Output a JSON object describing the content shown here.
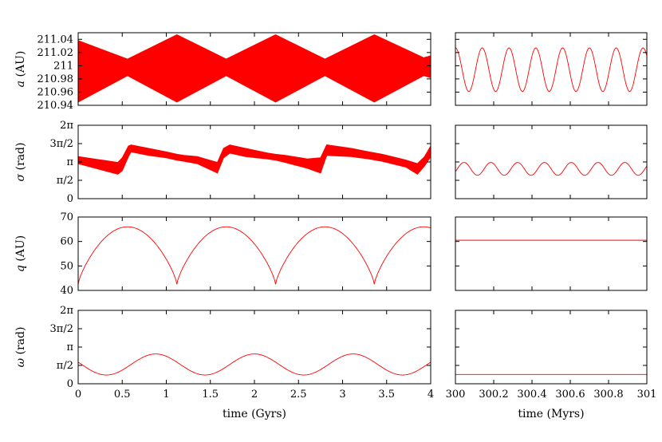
{
  "chart_data": [
    {
      "id": "a-long",
      "type": "area",
      "ylabel_sym": "a",
      "ylabel_unit": " (AU)",
      "x_range": [
        0,
        4
      ],
      "ylim": [
        210.94,
        211.05
      ],
      "y_ticks": [
        {
          "v": 211.04,
          "label": "211.04"
        },
        {
          "v": 211.02,
          "label": "211.02"
        },
        {
          "v": 211,
          "label": "211"
        },
        {
          "v": 210.98,
          "label": "210.98"
        },
        {
          "v": 210.96,
          "label": "210.96"
        },
        {
          "v": 210.94,
          "label": "210.94"
        }
      ],
      "x_ticks": [],
      "series": [
        {
          "mode": "band",
          "x": [
            0,
            0.56,
            1.12,
            1.68,
            2.24,
            2.8,
            3.36,
            3.92,
            4.0
          ],
          "upper": [
            211.038,
            211.01,
            211.047,
            211.01,
            211.047,
            211.01,
            211.047,
            211.012,
            211.015
          ],
          "lower": [
            210.945,
            210.985,
            210.945,
            210.985,
            210.945,
            210.985,
            210.945,
            210.985,
            210.982
          ]
        }
      ]
    },
    {
      "id": "a-short",
      "type": "line",
      "x_range": [
        300,
        301
      ],
      "ylim": [
        210.94,
        211.05
      ],
      "y_ticks": [
        {
          "v": 211.04,
          "label": ""
        },
        {
          "v": 211.02,
          "label": ""
        },
        {
          "v": 211,
          "label": ""
        },
        {
          "v": 210.98,
          "label": ""
        },
        {
          "v": 210.96,
          "label": ""
        },
        {
          "v": 210.94,
          "label": ""
        }
      ],
      "x_ticks": [],
      "series": [
        {
          "mode": "sine",
          "mean": 210.994,
          "amp": 0.033,
          "period": 0.14,
          "phase": 0.0
        }
      ]
    },
    {
      "id": "sigma-long",
      "type": "area",
      "ylabel_sym": "σ",
      "ylabel_unit": " (rad)",
      "x_range": [
        0,
        4
      ],
      "ylim": [
        0,
        6.2832
      ],
      "y_ticks": [
        {
          "v": 6.2832,
          "label": "2π"
        },
        {
          "v": 4.7124,
          "label": "3π/2"
        },
        {
          "v": 3.1416,
          "label": "π"
        },
        {
          "v": 1.5708,
          "label": "π/2"
        },
        {
          "v": 0,
          "label": "0"
        }
      ],
      "x_ticks": [],
      "series": [
        {
          "mode": "band",
          "x": [
            0,
            0.45,
            0.5,
            0.57,
            0.6,
            0.8,
            1.0,
            1.12,
            1.2,
            1.35,
            1.58,
            1.65,
            1.72,
            1.9,
            2.15,
            2.24,
            2.35,
            2.6,
            2.75,
            2.82,
            3.1,
            3.3,
            3.45,
            3.72,
            3.85,
            3.93,
            4.0
          ],
          "upper": [
            3.6,
            3.1,
            3.5,
            4.5,
            4.6,
            4.3,
            4.0,
            3.8,
            3.7,
            3.6,
            3.1,
            4.3,
            4.6,
            4.3,
            3.9,
            3.8,
            3.7,
            3.4,
            3.5,
            4.6,
            4.3,
            4.0,
            3.8,
            3.3,
            3.0,
            3.6,
            4.5
          ],
          "lower": [
            3.0,
            2.1,
            2.4,
            3.6,
            4.0,
            3.7,
            3.5,
            3.3,
            3.2,
            3.0,
            2.2,
            3.5,
            3.9,
            3.6,
            3.4,
            3.3,
            3.1,
            2.6,
            2.2,
            3.7,
            3.6,
            3.4,
            3.2,
            2.7,
            2.1,
            2.8,
            3.6
          ]
        }
      ]
    },
    {
      "id": "sigma-short",
      "type": "line",
      "x_range": [
        300,
        301
      ],
      "ylim": [
        0,
        6.2832
      ],
      "y_ticks": [
        {
          "v": 6.2832,
          "label": ""
        },
        {
          "v": 4.7124,
          "label": ""
        },
        {
          "v": 3.1416,
          "label": ""
        },
        {
          "v": 1.5708,
          "label": ""
        },
        {
          "v": 0,
          "label": ""
        }
      ],
      "x_ticks": [],
      "series": [
        {
          "mode": "sine",
          "mean": 2.55,
          "amp": 0.55,
          "period": 0.14,
          "phase": 0.045
        }
      ]
    },
    {
      "id": "q-long",
      "type": "line",
      "ylabel_sym": "q",
      "ylabel_unit": " (AU)",
      "x_range": [
        0,
        4
      ],
      "ylim": [
        40,
        70
      ],
      "y_ticks": [
        {
          "v": 70,
          "label": "70"
        },
        {
          "v": 60,
          "label": "60"
        },
        {
          "v": 50,
          "label": "50"
        },
        {
          "v": 40,
          "label": "40"
        }
      ],
      "x_ticks": [],
      "series": [
        {
          "mode": "cusp",
          "min": 42.5,
          "max": 66.0,
          "period": 1.12,
          "offset": 1.12
        }
      ]
    },
    {
      "id": "q-short",
      "type": "line",
      "x_range": [
        300,
        301
      ],
      "ylim": [
        40,
        70
      ],
      "y_ticks": [
        {
          "v": 70,
          "label": ""
        },
        {
          "v": 60,
          "label": ""
        },
        {
          "v": 50,
          "label": ""
        },
        {
          "v": 40,
          "label": ""
        }
      ],
      "x_ticks": [],
      "series": [
        {
          "mode": "const",
          "value": 60.5
        }
      ]
    },
    {
      "id": "omega-long",
      "type": "line",
      "ylabel_sym": "ω",
      "ylabel_unit": " (rad)",
      "x_range": [
        0,
        4
      ],
      "ylim": [
        0,
        6.2832
      ],
      "y_ticks": [
        {
          "v": 6.2832,
          "label": "2π"
        },
        {
          "v": 4.7124,
          "label": "3π/2"
        },
        {
          "v": 3.1416,
          "label": "π"
        },
        {
          "v": 1.5708,
          "label": "π/2"
        },
        {
          "v": 0,
          "label": "0"
        }
      ],
      "x_ticks": [
        {
          "v": 0,
          "label": "0"
        },
        {
          "v": 0.5,
          "label": "0.5"
        },
        {
          "v": 1,
          "label": "1"
        },
        {
          "v": 1.5,
          "label": "1.5"
        },
        {
          "v": 2,
          "label": "2"
        },
        {
          "v": 2.5,
          "label": "2.5"
        },
        {
          "v": 3,
          "label": "3"
        },
        {
          "v": 3.5,
          "label": "3.5"
        },
        {
          "v": 4,
          "label": "4"
        }
      ],
      "xlabel": "time (Gyrs)",
      "series": [
        {
          "mode": "sine",
          "mean": 1.65,
          "amp": 0.9,
          "period": 1.12,
          "phase": 0.88
        }
      ]
    },
    {
      "id": "omega-short",
      "type": "line",
      "x_range": [
        300,
        301
      ],
      "ylim": [
        0,
        6.2832
      ],
      "y_ticks": [
        {
          "v": 6.2832,
          "label": ""
        },
        {
          "v": 4.7124,
          "label": ""
        },
        {
          "v": 3.1416,
          "label": ""
        },
        {
          "v": 1.5708,
          "label": ""
        },
        {
          "v": 0,
          "label": ""
        }
      ],
      "x_ticks": [
        {
          "v": 300,
          "label": "300"
        },
        {
          "v": 300.2,
          "label": "300.2"
        },
        {
          "v": 300.4,
          "label": "300.4"
        },
        {
          "v": 300.6,
          "label": "300.6"
        },
        {
          "v": 300.8,
          "label": "300.8"
        },
        {
          "v": 301,
          "label": "301"
        }
      ],
      "xlabel": "time (Myrs)",
      "series": [
        {
          "mode": "const",
          "value": 0.8
        }
      ]
    }
  ],
  "colors": {
    "series": "#ff0000",
    "axis": "#000000"
  }
}
